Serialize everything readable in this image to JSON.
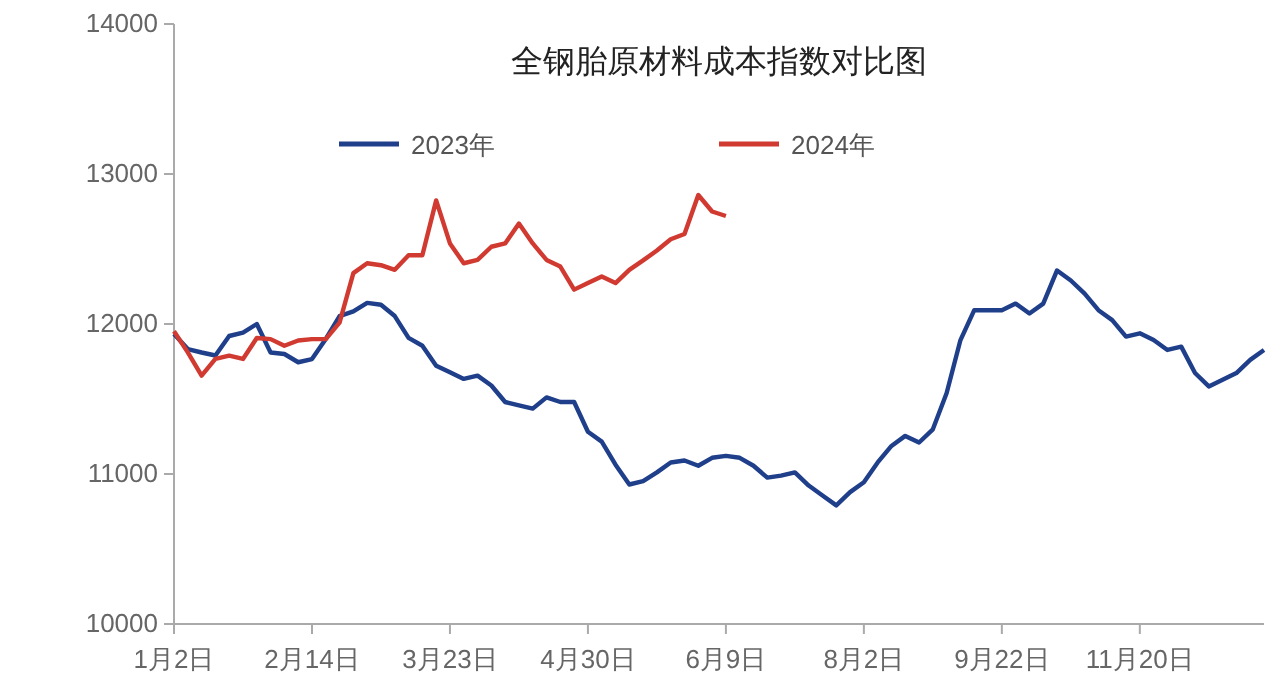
{
  "chart_data": {
    "type": "line",
    "title": "全钢胎原材料成本指数对比图",
    "categories": [
      "1月2日",
      null,
      null,
      null,
      null,
      null,
      null,
      null,
      null,
      null,
      "2月14日",
      null,
      null,
      null,
      null,
      null,
      null,
      null,
      null,
      null,
      "3月23日",
      null,
      null,
      null,
      null,
      null,
      null,
      null,
      null,
      null,
      "4月30日",
      null,
      null,
      null,
      null,
      null,
      null,
      null,
      null,
      null,
      "6月9日",
      null,
      null,
      null,
      null,
      null,
      null,
      null,
      null,
      null,
      "8月2日",
      null,
      null,
      null,
      null,
      null,
      null,
      null,
      null,
      null,
      "9月22日",
      null,
      null,
      null,
      null,
      null,
      null,
      null,
      null,
      null,
      "11月20日",
      null,
      null,
      null,
      null,
      null,
      null,
      null,
      null,
      null
    ],
    "series": [
      {
        "name": "2023年",
        "color": "#1f3f8a",
        "values": [
          11934,
          11833,
          11810,
          11790,
          11920,
          11943,
          12000,
          11810,
          11800,
          11745,
          11766,
          11900,
          12053,
          12084,
          12141,
          12128,
          12053,
          11907,
          11855,
          11722,
          11678,
          11634,
          11656,
          11590,
          11480,
          11458,
          11436,
          11511,
          11480,
          11480,
          11282,
          11216,
          11062,
          10930,
          10952,
          11011,
          11077,
          11090,
          11055,
          11108,
          11121,
          11108,
          11055,
          10976,
          10989,
          11011,
          10923,
          10857,
          10791,
          10879,
          10945,
          11077,
          11187,
          11254,
          11210,
          11298,
          11540,
          11893,
          12092,
          12092,
          12092,
          12136,
          12070,
          12136,
          12357,
          12290,
          12202,
          12092,
          12026,
          11916,
          11938,
          11893,
          11827,
          11849,
          11673,
          11584,
          11628,
          11673,
          11761,
          11827
        ]
      },
      {
        "name": "2024年",
        "color": "#d13a30",
        "values": [
          11952,
          11811,
          11656,
          11767,
          11789,
          11767,
          11907,
          11899,
          11855,
          11890,
          11899,
          11899,
          12009,
          12339,
          12405,
          12392,
          12361,
          12458,
          12458,
          12824,
          12537,
          12405,
          12427,
          12515,
          12537,
          12670,
          12537,
          12427,
          12383,
          12229,
          12273,
          12317,
          12273,
          12361,
          12424,
          12490,
          12565,
          12600,
          12860,
          12750,
          12720,
          null,
          null,
          null,
          null,
          null,
          null,
          null,
          null,
          null,
          null,
          null,
          null,
          null,
          null,
          null,
          null,
          null,
          null,
          null,
          null,
          null,
          null,
          null,
          null,
          null,
          null,
          null,
          null,
          null,
          null,
          null,
          null,
          null,
          null,
          null,
          null,
          null,
          null,
          null
        ]
      }
    ],
    "ylim": [
      10000,
      14000
    ],
    "yticks": [
      10000,
      11000,
      12000,
      13000,
      14000
    ],
    "grid": false,
    "legend": "top",
    "marker": "none",
    "line_style": "solid"
  }
}
